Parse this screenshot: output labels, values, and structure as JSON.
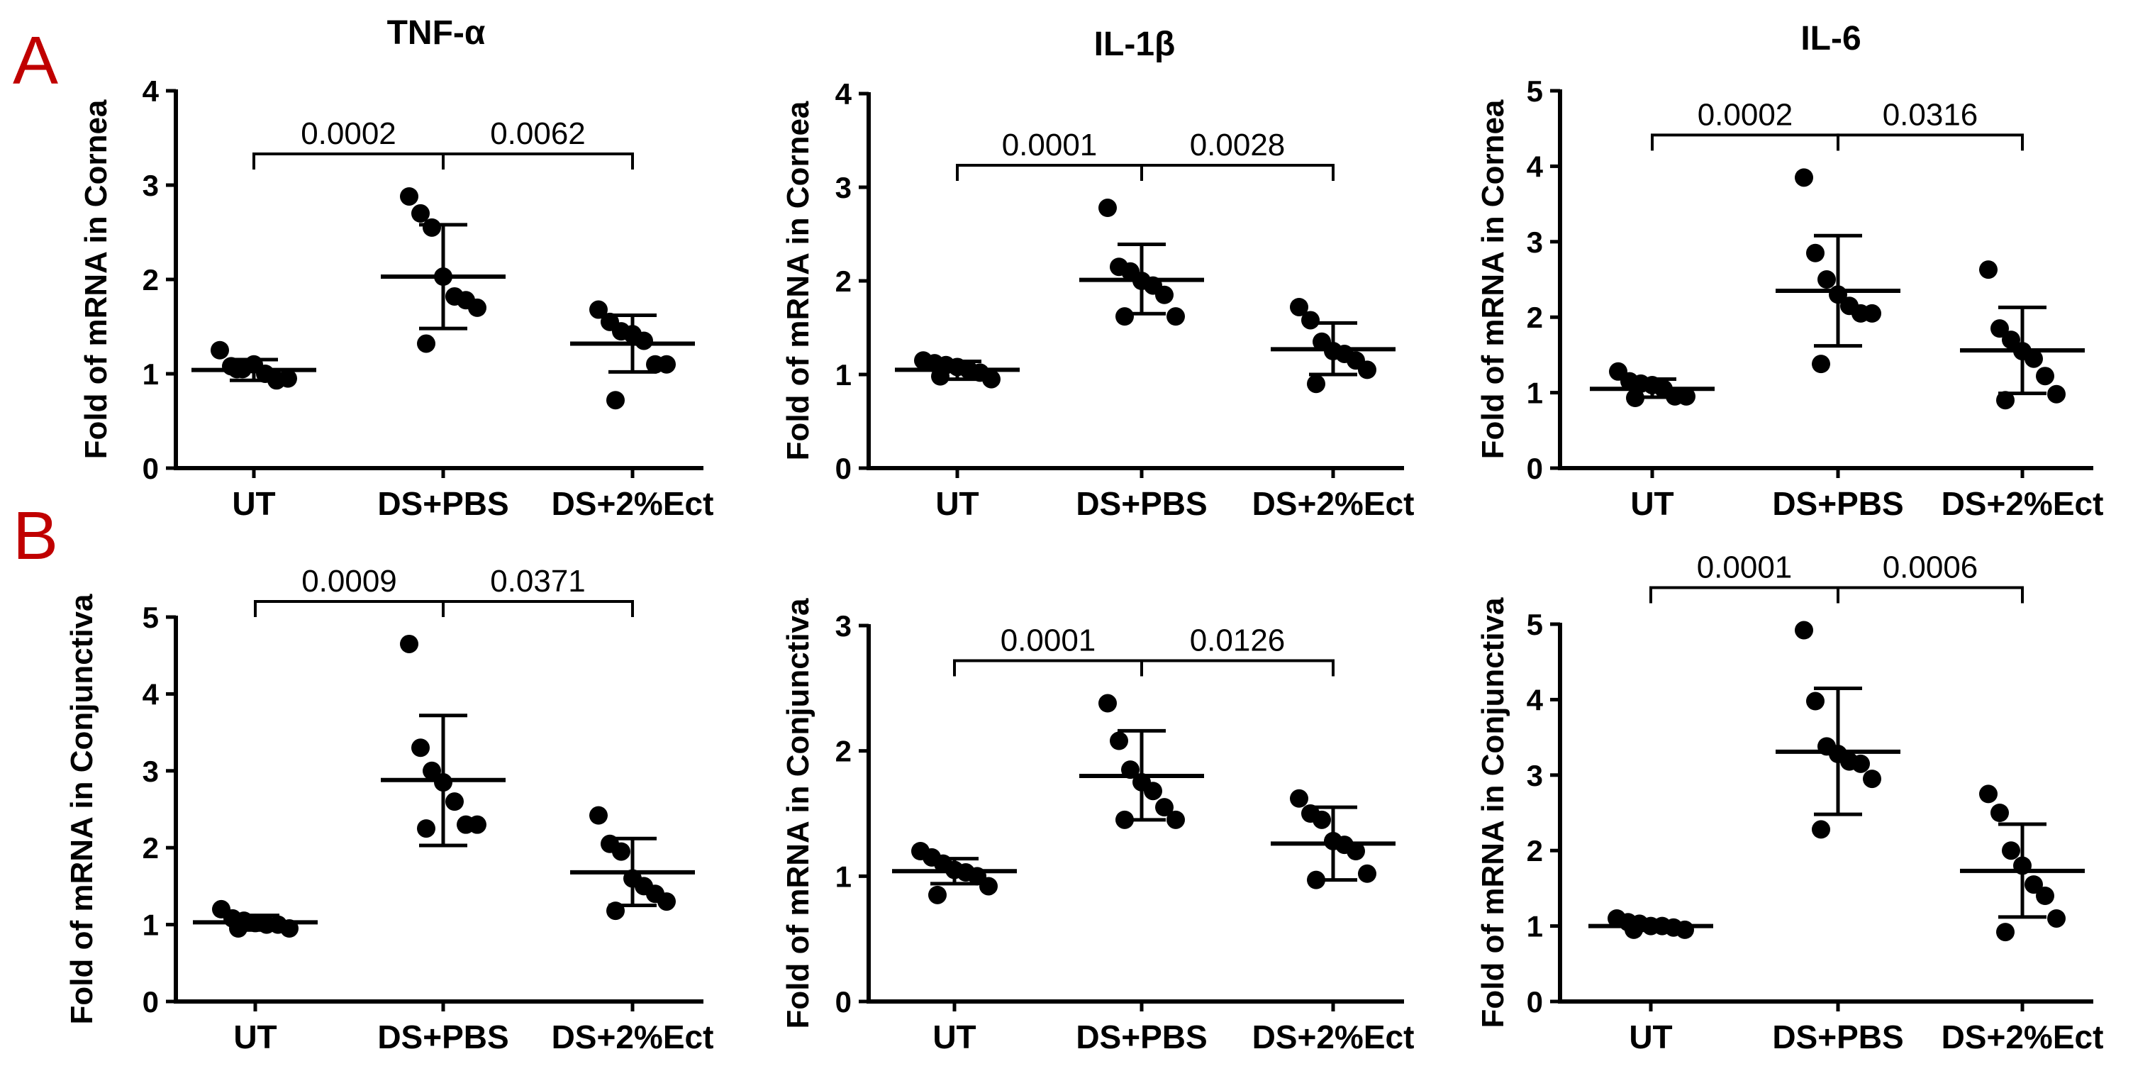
{
  "panel_labels": [
    "A",
    "B"
  ],
  "chart_data": [
    {
      "type": "scatter",
      "title": "TNF-α",
      "ylabel": "Fold of mRNA in Cornea",
      "categories": [
        "UT",
        "DS+PBS",
        "DS+2%Ect"
      ],
      "ylim": [
        0,
        4
      ],
      "yticks": [
        0,
        1,
        2,
        3,
        4
      ],
      "groups": [
        {
          "name": "UT",
          "mean": 1.04,
          "sd_low": 0.93,
          "sd_high": 1.15,
          "points": [
            1.25,
            1.08,
            1.05,
            1.1,
            1.0,
            0.93,
            0.95,
            1.05
          ]
        },
        {
          "name": "DS+PBS",
          "mean": 2.03,
          "sd_low": 1.48,
          "sd_high": 2.58,
          "points": [
            2.88,
            2.7,
            2.55,
            2.03,
            1.82,
            1.78,
            1.7,
            1.32
          ]
        },
        {
          "name": "DS+2%Ect",
          "mean": 1.32,
          "sd_low": 1.02,
          "sd_high": 1.62,
          "points": [
            1.68,
            1.55,
            1.45,
            1.42,
            1.35,
            1.1,
            1.1,
            0.72
          ]
        }
      ],
      "comparisons": [
        {
          "from": 0,
          "to": 1,
          "label": "0.0002"
        },
        {
          "from": 1,
          "to": 2,
          "label": "0.0062"
        }
      ]
    },
    {
      "type": "scatter",
      "title": "IL-1β",
      "ylabel": "Fold of mRNA in Cornea",
      "categories": [
        "UT",
        "DS+PBS",
        "DS+2%Ect"
      ],
      "ylim": [
        0,
        4
      ],
      "yticks": [
        0,
        1,
        2,
        3,
        4
      ],
      "groups": [
        {
          "name": "UT",
          "mean": 1.05,
          "sd_low": 0.95,
          "sd_high": 1.14,
          "points": [
            1.15,
            1.12,
            1.1,
            1.08,
            1.05,
            1.02,
            0.95,
            0.98
          ]
        },
        {
          "name": "DS+PBS",
          "mean": 2.01,
          "sd_low": 1.65,
          "sd_high": 2.39,
          "points": [
            2.78,
            2.15,
            2.1,
            2.0,
            1.95,
            1.85,
            1.62,
            1.62
          ]
        },
        {
          "name": "DS+2%Ect",
          "mean": 1.27,
          "sd_low": 1.0,
          "sd_high": 1.55,
          "points": [
            1.72,
            1.58,
            1.35,
            1.25,
            1.22,
            1.15,
            1.05,
            0.9
          ]
        }
      ],
      "comparisons": [
        {
          "from": 0,
          "to": 1,
          "label": "0.0001"
        },
        {
          "from": 1,
          "to": 2,
          "label": "0.0028"
        }
      ]
    },
    {
      "type": "scatter",
      "title": "IL-6",
      "ylabel": "Fold of mRNA in Cornea",
      "categories": [
        "UT",
        "DS+PBS",
        "DS+2%Ect"
      ],
      "ylim": [
        0,
        5
      ],
      "yticks": [
        0,
        1,
        2,
        3,
        4,
        5
      ],
      "groups": [
        {
          "name": "UT",
          "mean": 1.05,
          "sd_low": 0.94,
          "sd_high": 1.18,
          "points": [
            1.28,
            1.15,
            1.12,
            1.1,
            1.05,
            0.95,
            0.95,
            0.93
          ]
        },
        {
          "name": "DS+PBS",
          "mean": 2.35,
          "sd_low": 1.62,
          "sd_high": 3.08,
          "points": [
            3.85,
            2.85,
            2.5,
            2.3,
            2.15,
            2.05,
            2.05,
            1.38
          ]
        },
        {
          "name": "DS+2%Ect",
          "mean": 1.56,
          "sd_low": 0.99,
          "sd_high": 2.13,
          "points": [
            2.63,
            1.85,
            1.7,
            1.55,
            1.45,
            1.22,
            0.98,
            0.9
          ]
        }
      ],
      "comparisons": [
        {
          "from": 0,
          "to": 1,
          "label": "0.0002"
        },
        {
          "from": 1,
          "to": 2,
          "label": "0.0316"
        }
      ]
    },
    {
      "type": "scatter",
      "title": "",
      "ylabel": "Fold of mRNA in Conjunctiva",
      "categories": [
        "UT",
        "DS+PBS",
        "DS+2%Ect"
      ],
      "ylim": [
        0,
        5
      ],
      "yticks": [
        0,
        1,
        2,
        3,
        4,
        5
      ],
      "groups": [
        {
          "name": "UT",
          "mean": 1.03,
          "sd_low": 0.93,
          "sd_high": 1.12,
          "points": [
            1.2,
            1.08,
            1.05,
            1.02,
            1.0,
            1.0,
            0.95,
            0.95
          ]
        },
        {
          "name": "DS+PBS",
          "mean": 2.88,
          "sd_low": 2.03,
          "sd_high": 3.72,
          "points": [
            4.65,
            3.3,
            3.0,
            2.85,
            2.6,
            2.3,
            2.3,
            2.25
          ]
        },
        {
          "name": "DS+2%Ect",
          "mean": 1.68,
          "sd_low": 1.25,
          "sd_high": 2.12,
          "points": [
            2.42,
            2.05,
            1.95,
            1.6,
            1.5,
            1.4,
            1.3,
            1.18
          ]
        }
      ],
      "comparisons": [
        {
          "from": 0,
          "to": 1,
          "label": "0.0009"
        },
        {
          "from": 1,
          "to": 2,
          "label": "0.0371"
        }
      ]
    },
    {
      "type": "scatter",
      "title": "",
      "ylabel": "Fold of mRNA in Conjunctiva",
      "categories": [
        "UT",
        "DS+PBS",
        "DS+2%Ect"
      ],
      "ylim": [
        0,
        3
      ],
      "yticks": [
        0,
        1,
        2,
        3
      ],
      "groups": [
        {
          "name": "UT",
          "mean": 1.04,
          "sd_low": 0.94,
          "sd_high": 1.14,
          "points": [
            1.2,
            1.15,
            1.1,
            1.05,
            1.03,
            1.0,
            0.92,
            0.85
          ]
        },
        {
          "name": "DS+PBS",
          "mean": 1.8,
          "sd_low": 1.45,
          "sd_high": 2.16,
          "points": [
            2.38,
            2.08,
            1.85,
            1.75,
            1.68,
            1.55,
            1.45,
            1.45
          ]
        },
        {
          "name": "DS+2%Ect",
          "mean": 1.26,
          "sd_low": 0.97,
          "sd_high": 1.55,
          "points": [
            1.62,
            1.5,
            1.45,
            1.28,
            1.25,
            1.2,
            1.02,
            0.97
          ]
        }
      ],
      "comparisons": [
        {
          "from": 0,
          "to": 1,
          "label": "0.0001"
        },
        {
          "from": 1,
          "to": 2,
          "label": "0.0126"
        }
      ]
    },
    {
      "type": "scatter",
      "title": "",
      "ylabel": "Fold of mRNA in Conjunctiva",
      "categories": [
        "UT",
        "DS+PBS",
        "DS+2%Ect"
      ],
      "ylim": [
        0,
        5
      ],
      "yticks": [
        0,
        1,
        2,
        3,
        4,
        5
      ],
      "groups": [
        {
          "name": "UT",
          "mean": 1.0,
          "sd_low": 0.95,
          "sd_high": 1.05,
          "points": [
            1.1,
            1.05,
            1.03,
            1.0,
            1.0,
            0.98,
            0.95,
            0.95
          ]
        },
        {
          "name": "DS+PBS",
          "mean": 3.31,
          "sd_low": 2.48,
          "sd_high": 4.15,
          "points": [
            4.92,
            3.98,
            3.38,
            3.28,
            3.18,
            3.15,
            2.95,
            2.28
          ]
        },
        {
          "name": "DS+2%Ect",
          "mean": 1.73,
          "sd_low": 1.12,
          "sd_high": 2.35,
          "points": [
            2.75,
            2.5,
            2.0,
            1.8,
            1.55,
            1.4,
            1.1,
            0.92
          ]
        }
      ],
      "comparisons": [
        {
          "from": 0,
          "to": 1,
          "label": "0.0001"
        },
        {
          "from": 1,
          "to": 2,
          "label": "0.0006"
        }
      ]
    }
  ]
}
